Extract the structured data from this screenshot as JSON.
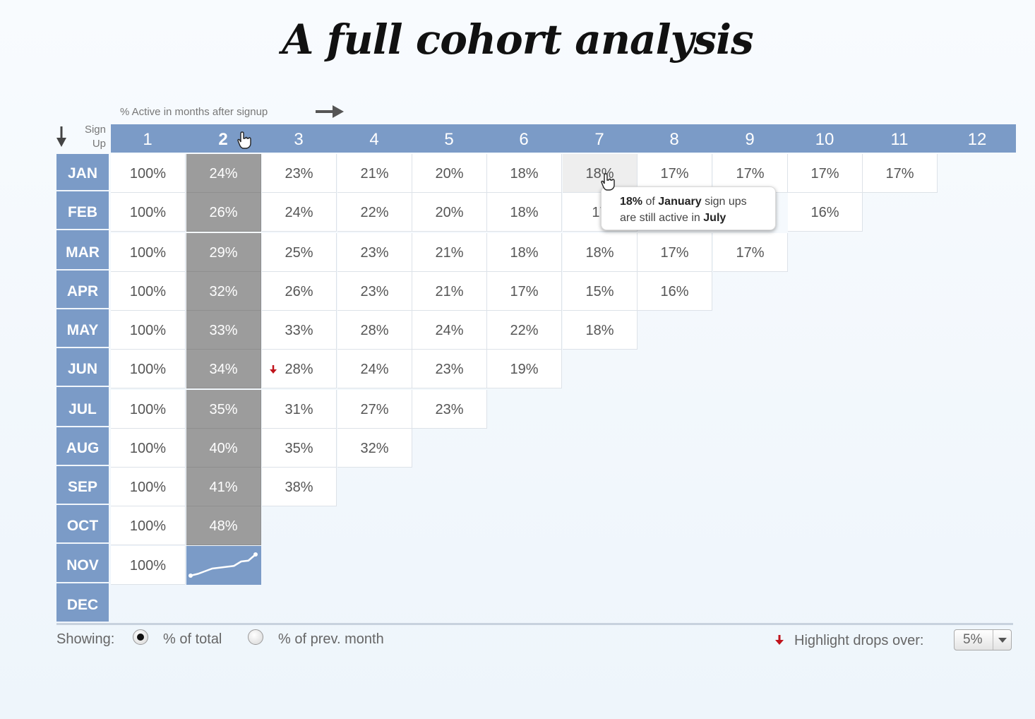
{
  "title": "A full cohort analysis",
  "axis_caption": "% Active in months after signup",
  "signup_label": "Sign\nUp",
  "columns": [
    "1",
    "2",
    "3",
    "4",
    "5",
    "6",
    "7",
    "8",
    "9",
    "10",
    "11",
    "12"
  ],
  "selected_column": "2",
  "rows": [
    {
      "month": "JAN",
      "values": [
        "100%",
        "24%",
        "23%",
        "21%",
        "20%",
        "18%",
        "18%",
        "17%",
        "17%",
        "17%",
        "17%"
      ]
    },
    {
      "month": "FEB",
      "values": [
        "100%",
        "26%",
        "24%",
        "22%",
        "20%",
        "18%",
        "17",
        "",
        "",
        "16%"
      ]
    },
    {
      "month": "MAR",
      "values": [
        "100%",
        "29%",
        "25%",
        "23%",
        "21%",
        "18%",
        "18%",
        "17%",
        "17%"
      ]
    },
    {
      "month": "APR",
      "values": [
        "100%",
        "32%",
        "26%",
        "23%",
        "21%",
        "17%",
        "15%",
        "16%"
      ]
    },
    {
      "month": "MAY",
      "values": [
        "100%",
        "33%",
        "33%",
        "28%",
        "24%",
        "22%",
        "18%"
      ]
    },
    {
      "month": "JUN",
      "values": [
        "100%",
        "34%",
        "28%",
        "24%",
        "23%",
        "19%"
      ]
    },
    {
      "month": "JUL",
      "values": [
        "100%",
        "35%",
        "31%",
        "27%",
        "23%"
      ]
    },
    {
      "month": "AUG",
      "values": [
        "100%",
        "40%",
        "35%",
        "32%"
      ]
    },
    {
      "month": "SEP",
      "values": [
        "100%",
        "41%",
        "38%"
      ]
    },
    {
      "month": "OCT",
      "values": [
        "100%",
        "48%"
      ]
    },
    {
      "month": "NOV",
      "values": [
        "100%"
      ]
    },
    {
      "month": "DEC",
      "values": []
    }
  ],
  "drop_marker": {
    "row": "JUN",
    "column": "3"
  },
  "sparkline": [
    24,
    26,
    29,
    32,
    33,
    34,
    35,
    40,
    41,
    48
  ],
  "tooltip": {
    "value": "18%",
    "text1": " of ",
    "cohort": "January",
    "text2": " sign ups",
    "text3": "are still active in ",
    "month": "July"
  },
  "footer": {
    "showing_label": "Showing:",
    "options": [
      "% of total",
      "% of prev. month"
    ],
    "selected_option": "% of total",
    "highlight_label": "Highlight drops over:",
    "threshold": "5%"
  },
  "colors": {
    "header_blue": "#7b9bc7",
    "selected_gray": "#9c9c9c",
    "drop_red": "#c0141c"
  }
}
